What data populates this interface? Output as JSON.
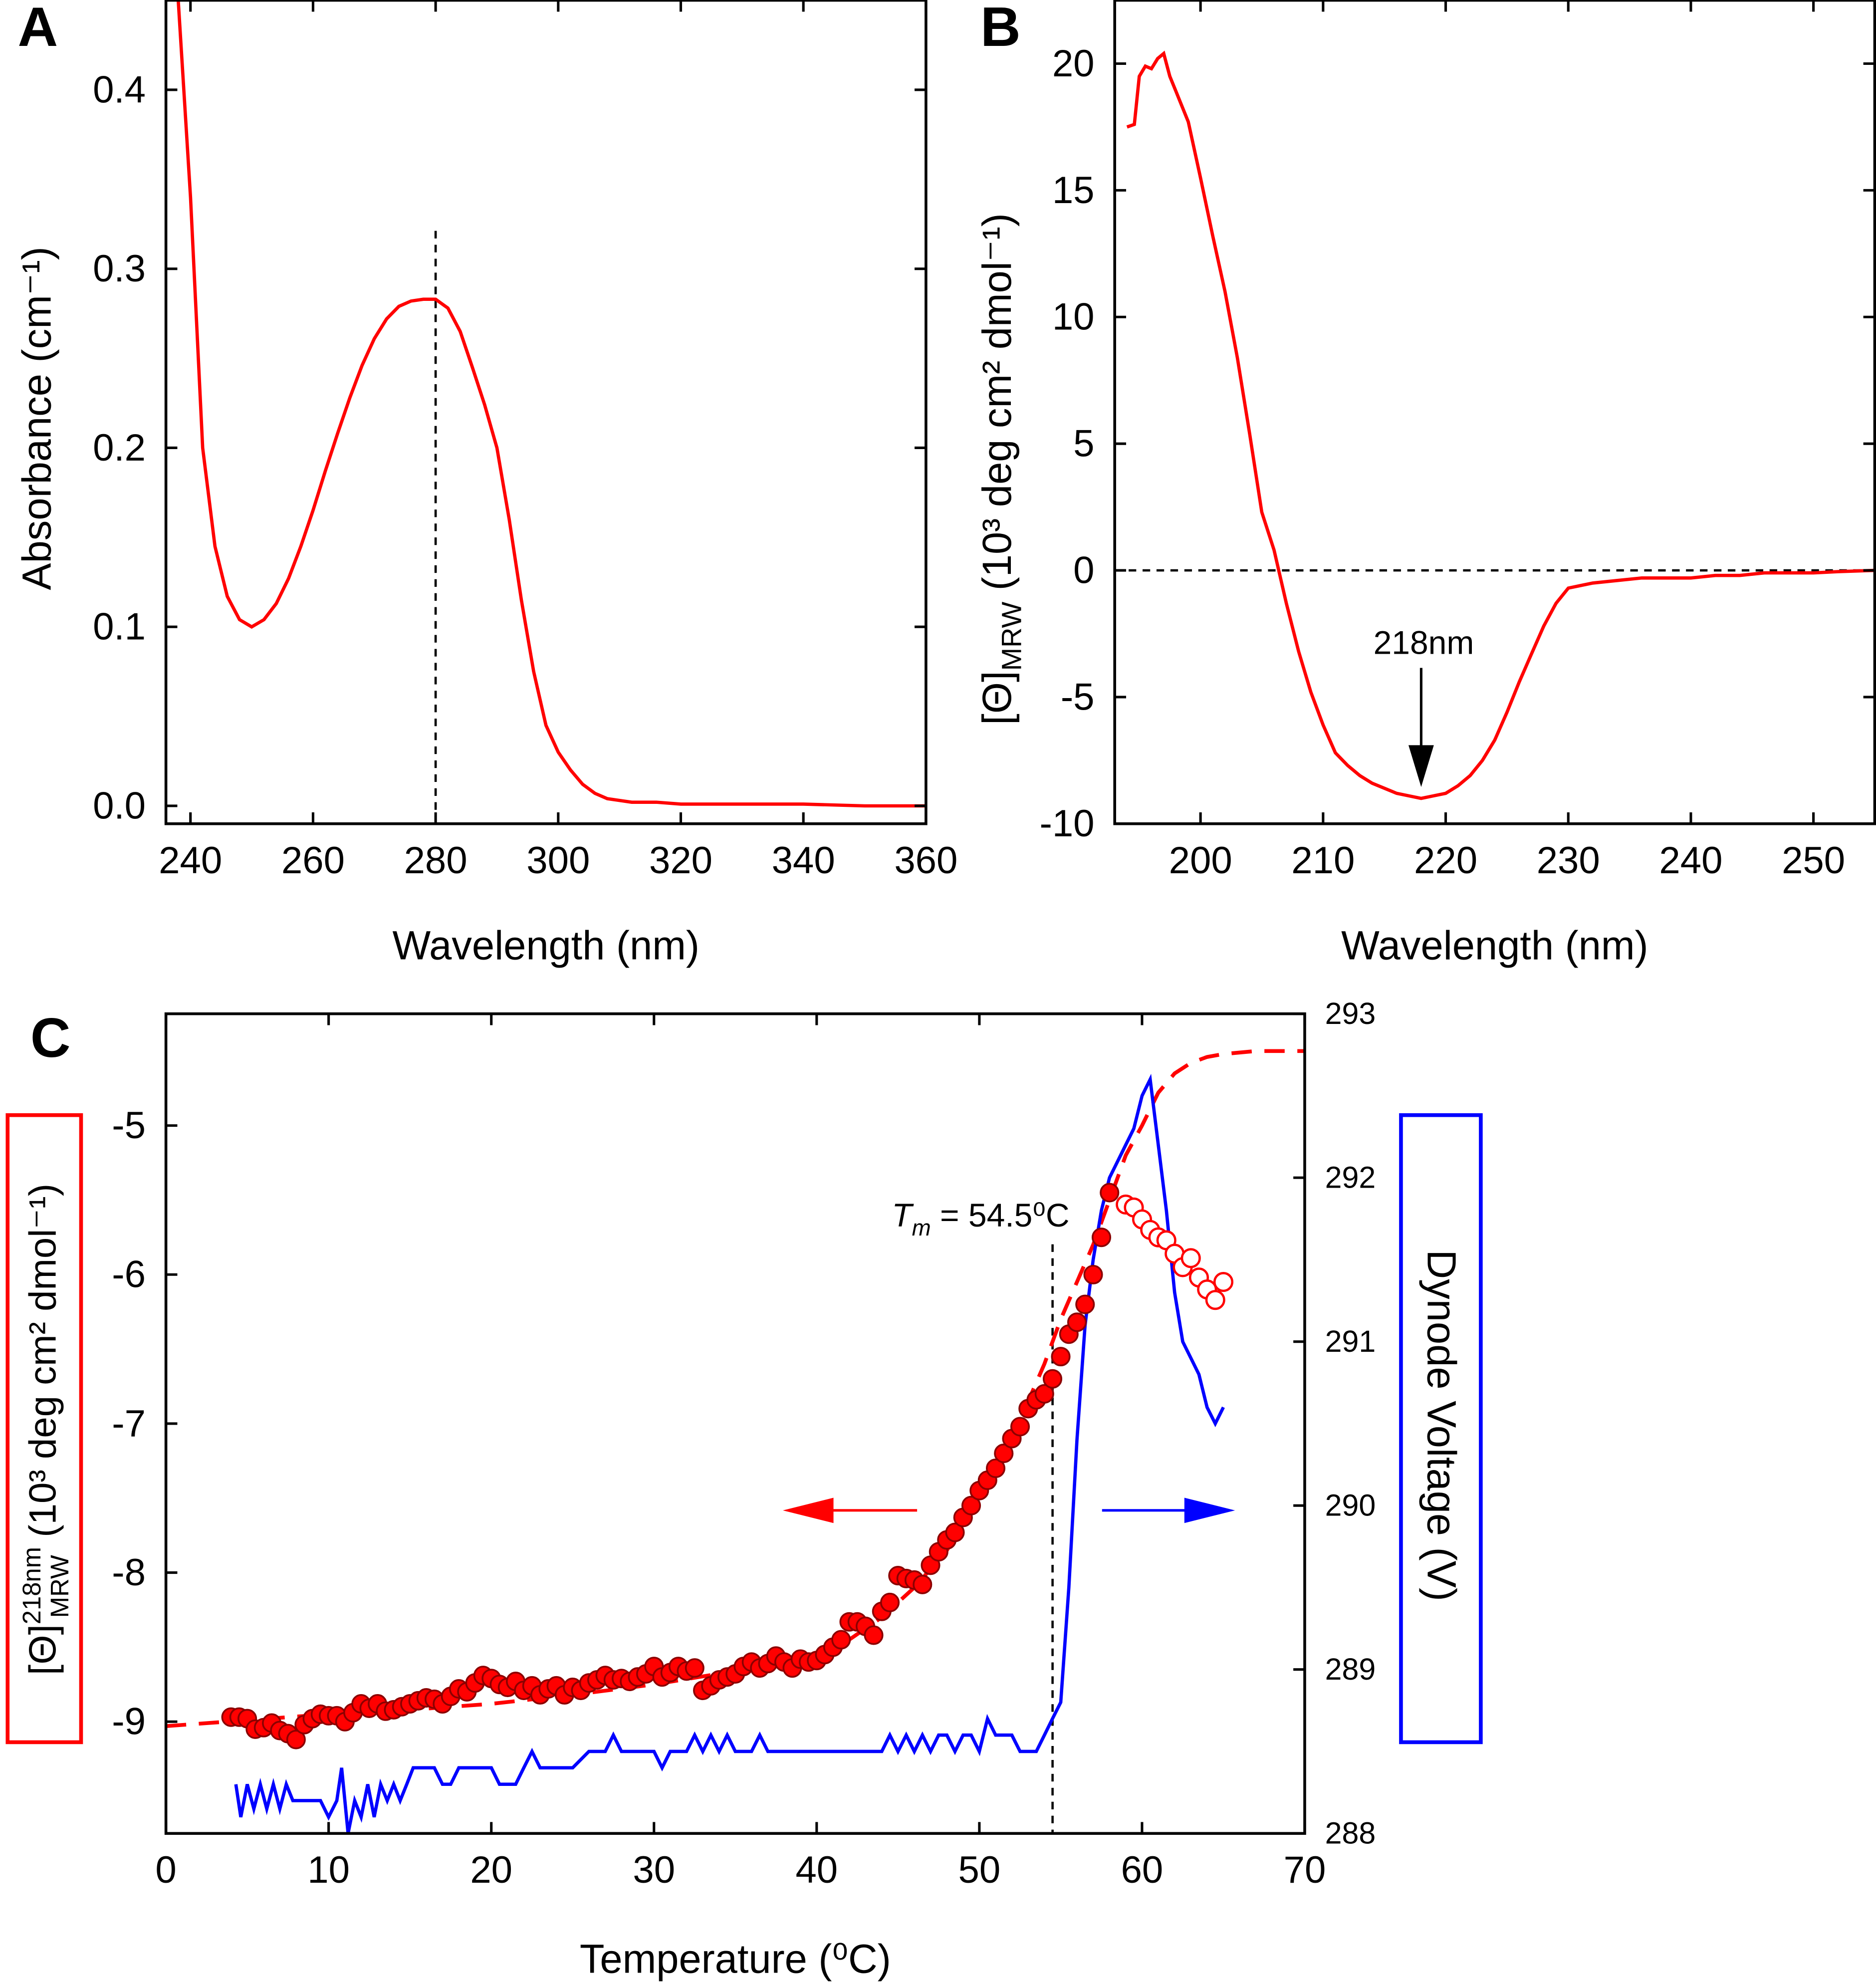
{
  "colors": {
    "red": "#ff0000",
    "blue": "#0000ff",
    "black": "#000000"
  },
  "chart_data": [
    {
      "panel": "A",
      "type": "line",
      "xlabel": "Wavelength  (nm)",
      "ylabel": "Absorbance  (cm⁻¹)",
      "xlim": [
        236,
        360
      ],
      "ylim": [
        -0.01,
        0.45
      ],
      "xticks": [
        240,
        260,
        280,
        300,
        320,
        340,
        360
      ],
      "yticks": [
        0.0,
        0.1,
        0.2,
        0.3,
        0.4
      ],
      "xtick_labels": [
        "240",
        "260",
        "280",
        "300",
        "320",
        "340",
        "360"
      ],
      "ytick_labels": [
        "0.0",
        "0.1",
        "0.2",
        "0.3",
        "0.4"
      ],
      "reference_line_x": 280,
      "series": [
        {
          "color": "#ff0000",
          "x": [
            238,
            240,
            242,
            244,
            246,
            248,
            250,
            252,
            254,
            256,
            258,
            260,
            262,
            264,
            266,
            268,
            270,
            272,
            274,
            276,
            278,
            280,
            282,
            284,
            286,
            288,
            290,
            292,
            294,
            296,
            298,
            300,
            302,
            304,
            306,
            308,
            310,
            312,
            316,
            320,
            330,
            340,
            350,
            360
          ],
          "y": [
            0.45,
            0.34,
            0.2,
            0.145,
            0.117,
            0.104,
            0.1,
            0.104,
            0.113,
            0.127,
            0.145,
            0.165,
            0.187,
            0.208,
            0.228,
            0.246,
            0.261,
            0.272,
            0.279,
            0.282,
            0.283,
            0.283,
            0.278,
            0.265,
            0.245,
            0.224,
            0.2,
            0.16,
            0.115,
            0.075,
            0.045,
            0.03,
            0.02,
            0.012,
            0.007,
            0.004,
            0.003,
            0.002,
            0.002,
            0.001,
            0.001,
            0.001,
            0.0,
            0.0
          ]
        }
      ]
    },
    {
      "panel": "B",
      "type": "line",
      "xlabel": "Wavelength  (nm)",
      "ylabel_main": "[Θ]",
      "ylabel_sub": "MRW",
      "ylabel_rest": " (10³ deg cm² dmol⁻¹)",
      "xlim": [
        193,
        255
      ],
      "ylim": [
        -10,
        22.5
      ],
      "xticks": [
        200,
        210,
        220,
        230,
        240,
        250
      ],
      "yticks": [
        -10,
        -5,
        0,
        5,
        10,
        15,
        20
      ],
      "xtick_labels": [
        "200",
        "210",
        "220",
        "230",
        "240",
        "250"
      ],
      "ytick_labels": [
        "-10",
        "-5",
        "0",
        "5",
        "10",
        "15",
        "20"
      ],
      "reference_line_y": 0,
      "annotation": {
        "text": "218nm",
        "x": 218,
        "y": -8.9
      },
      "series": [
        {
          "color": "#ff0000",
          "x": [
            194,
            194.6,
            195,
            195.5,
            196,
            196.5,
            197,
            197.5,
            198,
            199,
            200,
            201,
            202,
            203,
            204,
            205,
            206,
            207,
            208,
            209,
            210,
            211,
            212,
            213,
            214,
            215,
            216,
            217,
            218,
            219,
            220,
            221,
            222,
            223,
            224,
            225,
            226,
            227,
            228,
            229,
            230,
            231,
            232,
            234,
            236,
            238,
            240,
            242,
            244,
            246,
            248,
            250,
            252,
            255
          ],
          "y": [
            17.5,
            17.6,
            19.5,
            19.9,
            19.8,
            20.2,
            20.4,
            19.5,
            18.9,
            17.7,
            15.5,
            13.2,
            11,
            8.4,
            5.4,
            2.3,
            0.8,
            -1.3,
            -3.2,
            -4.8,
            -6.1,
            -7.2,
            -7.7,
            -8.1,
            -8.4,
            -8.6,
            -8.8,
            -8.9,
            -9,
            -8.9,
            -8.8,
            -8.5,
            -8.1,
            -7.5,
            -6.7,
            -5.6,
            -4.4,
            -3.3,
            -2.2,
            -1.3,
            -0.7,
            -0.6,
            -0.5,
            -0.4,
            -0.3,
            -0.3,
            -0.3,
            -0.2,
            -0.2,
            -0.1,
            -0.1,
            -0.1,
            -0.05,
            0.0
          ]
        }
      ]
    },
    {
      "panel": "C",
      "type": "scatter",
      "xlabel": "Temperature  (⁰C)",
      "ylabel_main": "[Θ]",
      "ylabel_sup": "218nm",
      "ylabel_sub": "MRW",
      "ylabel_rest": "(10³ deg cm² dmol⁻¹)",
      "y2label": "Dynode Voltage  (V)",
      "xlim": [
        0,
        70
      ],
      "ylim": [
        -9.75,
        -4.25
      ],
      "y2lim": [
        288,
        293
      ],
      "xticks": [
        0,
        10,
        20,
        30,
        40,
        50,
        60,
        70
      ],
      "yticks": [
        -9,
        -8,
        -7,
        -6,
        -5
      ],
      "y2ticks": [
        288,
        289,
        290,
        291,
        292,
        293
      ],
      "xtick_labels": [
        "0",
        "10",
        "20",
        "30",
        "40",
        "50",
        "60",
        "70"
      ],
      "ytick_labels": [
        "-9",
        "-8",
        "-7",
        "-6",
        "-5"
      ],
      "y2tick_labels": [
        "288",
        "289",
        "290",
        "291",
        "292",
        "293"
      ],
      "tm_text_italic": "T",
      "tm_text_sub": "m",
      "tm_text_rest": " = 54.5⁰C",
      "tm_value": 54.5,
      "series": [
        {
          "kind": "filled-circles",
          "color": "#ff0000",
          "x": [
            4,
            4.5,
            5,
            5.5,
            6,
            6.5,
            7,
            7.5,
            8,
            8.5,
            9,
            9.5,
            10,
            10.5,
            11,
            11.5,
            12,
            12.5,
            13,
            13.5,
            14,
            14.5,
            15,
            15.5,
            16,
            16.5,
            17,
            17.5,
            18,
            18.5,
            19,
            19.5,
            20,
            20.5,
            21,
            21.5,
            22,
            22.5,
            23,
            23.5,
            24,
            24.5,
            25,
            25.5,
            26,
            26.5,
            27,
            27.5,
            28,
            28.5,
            29,
            29.5,
            30,
            30.5,
            31,
            31.5,
            32,
            32.5,
            33,
            33.5,
            34,
            34.5,
            35,
            35.5,
            36,
            36.5,
            37,
            37.5,
            38,
            38.5,
            39,
            39.5,
            40,
            40.5,
            41,
            41.5,
            42,
            42.5,
            43,
            43.5,
            44,
            44.5,
            45,
            45.5,
            46,
            46.5,
            47,
            47.5,
            48,
            48.5,
            49,
            49.5,
            50,
            50.5,
            51,
            51.5,
            52,
            52.5,
            53,
            53.5,
            54,
            54.5,
            55,
            55.5,
            56,
            56.5,
            57,
            57.5,
            58
          ],
          "y": [
            -8.97,
            -8.97,
            -8.98,
            -9.05,
            -9.04,
            -9.01,
            -9.06,
            -9.08,
            -9.12,
            -9.02,
            -8.98,
            -8.95,
            -8.96,
            -8.96,
            -9.0,
            -8.94,
            -8.88,
            -8.91,
            -8.88,
            -8.93,
            -8.92,
            -8.9,
            -8.88,
            -8.86,
            -8.84,
            -8.85,
            -8.88,
            -8.83,
            -8.78,
            -8.8,
            -8.74,
            -8.69,
            -8.71,
            -8.75,
            -8.77,
            -8.73,
            -8.79,
            -8.76,
            -8.82,
            -8.78,
            -8.76,
            -8.82,
            -8.77,
            -8.79,
            -8.74,
            -8.72,
            -8.69,
            -8.72,
            -8.71,
            -8.73,
            -8.7,
            -8.68,
            -8.63,
            -8.7,
            -8.67,
            -8.63,
            -8.66,
            -8.64,
            -8.79,
            -8.76,
            -8.72,
            -8.7,
            -8.68,
            -8.63,
            -8.6,
            -8.64,
            -8.61,
            -8.56,
            -8.6,
            -8.64,
            -8.58,
            -8.6,
            -8.59,
            -8.55,
            -8.5,
            -8.45,
            -8.33,
            -8.33,
            -8.36,
            -8.42,
            -8.26,
            -8.2,
            -8.02,
            -8.04,
            -8.05,
            -8.08,
            -7.95,
            -7.86,
            -7.78,
            -7.73,
            -7.63,
            -7.55,
            -7.45,
            -7.38,
            -7.3,
            -7.2,
            -7.1,
            -7.02,
            -6.9,
            -6.84,
            -6.8,
            -6.7,
            -6.55,
            -6.4,
            -6.32,
            -6.2,
            -6.0,
            -5.75,
            -5.45
          ]
        },
        {
          "kind": "open-circles",
          "color": "#ff0000",
          "x": [
            59,
            59.5,
            60,
            60.5,
            61,
            61.5,
            62,
            62.5,
            63,
            63.5,
            64,
            64.5,
            65
          ],
          "y": [
            -5.53,
            -5.55,
            -5.63,
            -5.7,
            -5.75,
            -5.77,
            -5.86,
            -5.95,
            -5.89,
            -6.02,
            -6.1,
            -6.17,
            -6.05
          ]
        },
        {
          "kind": "fit-dashed",
          "color": "#ff0000",
          "x": [
            0,
            5,
            10,
            15,
            20,
            25,
            30,
            35,
            40,
            42,
            44,
            46,
            48,
            50,
            52,
            53,
            54,
            55,
            56,
            57,
            58,
            59,
            60,
            61,
            62,
            63,
            64,
            65,
            66,
            67,
            68,
            69,
            70
          ],
          "y": [
            -9.03,
            -8.99,
            -8.95,
            -8.92,
            -8.88,
            -8.82,
            -8.75,
            -8.66,
            -8.55,
            -8.45,
            -8.3,
            -8.1,
            -7.85,
            -7.5,
            -7.1,
            -6.85,
            -6.6,
            -6.3,
            -6.05,
            -5.8,
            -5.5,
            -5.2,
            -5.0,
            -4.78,
            -4.65,
            -4.58,
            -4.54,
            -4.52,
            -4.51,
            -4.5,
            -4.5,
            -4.5,
            -4.5
          ]
        },
        {
          "kind": "line",
          "color": "#0000ff",
          "axis": "right",
          "x": [
            4.3,
            4.6,
            5,
            5.4,
            5.8,
            6.2,
            6.6,
            7,
            7.4,
            7.8,
            8.2,
            8.6,
            9,
            9.5,
            10,
            10.5,
            10.8,
            11.2,
            11.6,
            12,
            12.4,
            12.8,
            13.2,
            13.6,
            14,
            14.4,
            14.8,
            15.2,
            15.6,
            16,
            16.5,
            17,
            17.5,
            18,
            18.5,
            19,
            19.5,
            20,
            20.5,
            21,
            21.5,
            22,
            22.5,
            23,
            24,
            25,
            26,
            27,
            27.5,
            28,
            28.5,
            29,
            30,
            30.5,
            31,
            32,
            32.5,
            33,
            33.5,
            34,
            34.5,
            35,
            36,
            36.5,
            37,
            38,
            39,
            40,
            41,
            42,
            43,
            44,
            44.5,
            45,
            45.5,
            46,
            46.5,
            47,
            47.5,
            48,
            48.5,
            49,
            49.5,
            50,
            50.5,
            51,
            51.5,
            52,
            52.5,
            53,
            53.5,
            54,
            54.5,
            55,
            55.5,
            56,
            56.5,
            57,
            57.5,
            58,
            58.5,
            59,
            59.5,
            60,
            60.5,
            61,
            61.5,
            62,
            62.5,
            63,
            63.5,
            64,
            64.5,
            65
          ],
          "y": [
            288.3,
            288.1,
            288.3,
            288.15,
            288.3,
            288.15,
            288.3,
            288.15,
            288.3,
            288.2,
            288.2,
            288.2,
            288.2,
            288.2,
            288.1,
            288.2,
            288.4,
            288.0,
            288.2,
            288.1,
            288.3,
            288.1,
            288.3,
            288.2,
            288.3,
            288.2,
            288.3,
            288.4,
            288.4,
            288.4,
            288.4,
            288.3,
            288.3,
            288.4,
            288.4,
            288.4,
            288.4,
            288.4,
            288.3,
            288.3,
            288.3,
            288.4,
            288.5,
            288.4,
            288.4,
            288.4,
            288.5,
            288.5,
            288.6,
            288.5,
            288.5,
            288.5,
            288.5,
            288.4,
            288.5,
            288.5,
            288.6,
            288.5,
            288.6,
            288.5,
            288.6,
            288.5,
            288.5,
            288.6,
            288.5,
            288.5,
            288.5,
            288.5,
            288.5,
            288.5,
            288.5,
            288.5,
            288.6,
            288.5,
            288.6,
            288.5,
            288.6,
            288.5,
            288.6,
            288.6,
            288.5,
            288.6,
            288.6,
            288.5,
            288.7,
            288.6,
            288.6,
            288.6,
            288.5,
            288.5,
            288.5,
            288.6,
            288.7,
            288.8,
            289.5,
            290.4,
            291.1,
            291.5,
            291.8,
            292.0,
            292.1,
            292.2,
            292.3,
            292.5,
            292.6,
            292.2,
            291.8,
            291.3,
            291.0,
            290.9,
            290.8,
            290.6,
            290.5,
            290.6
          ]
        }
      ]
    }
  ]
}
